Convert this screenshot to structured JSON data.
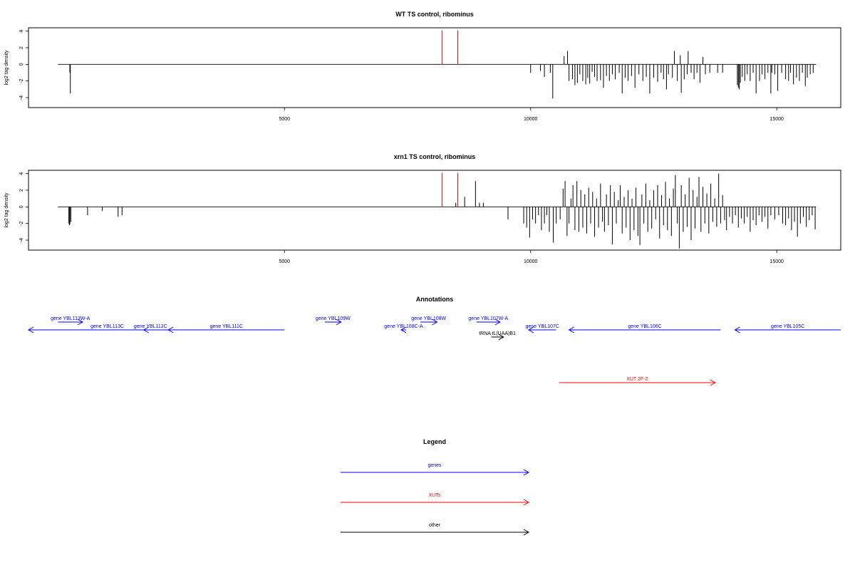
{
  "chart_data": [
    {
      "type": "bar",
      "title": "WT TS control, ribominus",
      "ylabel": "log2 tag density",
      "xlim": [
        -200,
        16300
      ],
      "ylim": [
        -5.2,
        4.4
      ],
      "xticks": [
        5000,
        10000,
        15000
      ],
      "xtick_labels": [
        "5000",
        "10000",
        "15000"
      ],
      "yticks": [
        -4,
        -2,
        0,
        2,
        4
      ],
      "ytick_labels": [
        "-4",
        "-2",
        "0",
        "2",
        "4"
      ],
      "baseline": [
        400,
        15800
      ],
      "marker_color": "#ff0000",
      "markers": [
        {
          "x": 8200,
          "y": 4.1
        },
        {
          "x": 8520,
          "y": 4.1
        }
      ],
      "values": [
        [
          640,
          -1.0
        ],
        [
          650,
          -3.5
        ],
        [
          10000,
          -1.0
        ],
        [
          10200,
          -0.8
        ],
        [
          10280,
          -1.5
        ],
        [
          10400,
          -1.0
        ],
        [
          10450,
          -4.1
        ],
        [
          10680,
          1.0
        ],
        [
          10750,
          1.6
        ],
        [
          10780,
          -2.0
        ],
        [
          10850,
          -1.8
        ],
        [
          10900,
          -2.5
        ],
        [
          10950,
          -2.2
        ],
        [
          11000,
          -1.2
        ],
        [
          11060,
          -2.0
        ],
        [
          11120,
          -2.4
        ],
        [
          11160,
          -1.6
        ],
        [
          11200,
          -2.3
        ],
        [
          11250,
          -0.9
        ],
        [
          11300,
          -1.5
        ],
        [
          11350,
          -2.0
        ],
        [
          11420,
          -1.9
        ],
        [
          11480,
          -2.8
        ],
        [
          11540,
          -1.4
        ],
        [
          11600,
          -2.0
        ],
        [
          11660,
          -1.2
        ],
        [
          11720,
          -1.8
        ],
        [
          11800,
          -1.0
        ],
        [
          11860,
          -3.5
        ],
        [
          11920,
          -1.6
        ],
        [
          11980,
          -2.0
        ],
        [
          12050,
          -1.4
        ],
        [
          12120,
          -2.8
        ],
        [
          12200,
          -1.2
        ],
        [
          12280,
          -2.0
        ],
        [
          12350,
          -1.5
        ],
        [
          12420,
          -3.5
        ],
        [
          12500,
          -1.6
        ],
        [
          12580,
          -2.1
        ],
        [
          12650,
          -1.0
        ],
        [
          12700,
          -1.8
        ],
        [
          12760,
          -3.0
        ],
        [
          12800,
          -1.2
        ],
        [
          12880,
          -1.6
        ],
        [
          12920,
          1.6
        ],
        [
          12980,
          -2.0
        ],
        [
          13040,
          1.1
        ],
        [
          13060,
          -3.4
        ],
        [
          13120,
          -1.8
        ],
        [
          13180,
          -1.2
        ],
        [
          13200,
          1.6
        ],
        [
          13260,
          -1.0
        ],
        [
          13320,
          -1.8
        ],
        [
          13380,
          -1.0
        ],
        [
          13440,
          -2.2
        ],
        [
          13500,
          0.9
        ],
        [
          13550,
          -1.2
        ],
        [
          13640,
          -1.0
        ],
        [
          13800,
          -1.0
        ],
        [
          13900,
          -1.0
        ],
        [
          14200,
          -2.5
        ],
        [
          14220,
          -2.8
        ],
        [
          14240,
          -3.0
        ],
        [
          14260,
          -2.2
        ],
        [
          14300,
          -1.5
        ],
        [
          14350,
          -2.0
        ],
        [
          14400,
          -1.2
        ],
        [
          14460,
          -2.0
        ],
        [
          14520,
          -1.0
        ],
        [
          14580,
          -3.5
        ],
        [
          14650,
          -2.0
        ],
        [
          14700,
          -1.2
        ],
        [
          14760,
          -1.8
        ],
        [
          14820,
          -1.0
        ],
        [
          14880,
          -3.5
        ],
        [
          14900,
          -1.0
        ],
        [
          14960,
          -1.2
        ],
        [
          15020,
          -3.2
        ],
        [
          15100,
          -1.0
        ],
        [
          15180,
          -1.8
        ],
        [
          15240,
          -2.0
        ],
        [
          15280,
          -1.0
        ],
        [
          15340,
          -2.4
        ],
        [
          15400,
          -1.6
        ],
        [
          15460,
          -2.0
        ],
        [
          15520,
          -1.0
        ],
        [
          15580,
          -2.6
        ],
        [
          15620,
          -1.6
        ],
        [
          15680,
          -1.2
        ],
        [
          15740,
          -1.0
        ]
      ]
    },
    {
      "type": "bar",
      "title": "xrn1 TS control, ribominus",
      "ylabel": "log2 tag density",
      "xlim": [
        -200,
        16300
      ],
      "ylim": [
        -5.2,
        4.4
      ],
      "xticks": [
        5000,
        10000,
        15000
      ],
      "xtick_labels": [
        "5000",
        "10000",
        "15000"
      ],
      "yticks": [
        -4,
        -2,
        0,
        2,
        4
      ],
      "ytick_labels": [
        "-4",
        "-2",
        "0",
        "2",
        "4"
      ],
      "baseline": [
        400,
        15800
      ],
      "marker_color": "#ff0000",
      "markers": [
        {
          "x": 8200,
          "y": 4.1
        },
        {
          "x": 8520,
          "y": 4.1
        }
      ],
      "values": [
        [
          620,
          -2.0
        ],
        [
          630,
          -2.2
        ],
        [
          640,
          -2.1
        ],
        [
          660,
          -1.8
        ],
        [
          1000,
          -1.0
        ],
        [
          1300,
          -0.5
        ],
        [
          1620,
          -1.2
        ],
        [
          1700,
          -1.0
        ],
        [
          8480,
          0.5
        ],
        [
          8660,
          1.2
        ],
        [
          8880,
          3.1
        ],
        [
          8960,
          0.5
        ],
        [
          9040,
          0.5
        ],
        [
          9540,
          -1.5
        ],
        [
          9860,
          -2.0
        ],
        [
          9920,
          -2.5
        ],
        [
          9980,
          -3.7
        ],
        [
          10040,
          -1.5
        ],
        [
          10100,
          -2.0
        ],
        [
          10160,
          -1.0
        ],
        [
          10220,
          -2.8
        ],
        [
          10280,
          -2.0
        ],
        [
          10330,
          -1.0
        ],
        [
          10380,
          -3.0
        ],
        [
          10460,
          -4.3
        ],
        [
          10520,
          -2.0
        ],
        [
          10600,
          -1.5
        ],
        [
          10660,
          2.2
        ],
        [
          10700,
          3.1
        ],
        [
          10740,
          -3.5
        ],
        [
          10780,
          -2.0
        ],
        [
          10820,
          1.0
        ],
        [
          10860,
          2.6
        ],
        [
          10900,
          -2.8
        ],
        [
          10940,
          3.1
        ],
        [
          10980,
          -3.0
        ],
        [
          11020,
          2.0
        ],
        [
          11060,
          -2.5
        ],
        [
          11100,
          1.5
        ],
        [
          11140,
          -3.2
        ],
        [
          11180,
          2.3
        ],
        [
          11220,
          -2.0
        ],
        [
          11260,
          1.8
        ],
        [
          11300,
          -3.6
        ],
        [
          11340,
          1.0
        ],
        [
          11380,
          -2.5
        ],
        [
          11420,
          2.8
        ],
        [
          11460,
          -1.8
        ],
        [
          11500,
          -3.0
        ],
        [
          11540,
          1.5
        ],
        [
          11580,
          -2.2
        ],
        [
          11620,
          2.6
        ],
        [
          11660,
          -4.5
        ],
        [
          11700,
          1.8
        ],
        [
          11740,
          -2.0
        ],
        [
          11780,
          0.8
        ],
        [
          11820,
          2.6
        ],
        [
          11860,
          -3.2
        ],
        [
          11900,
          1.2
        ],
        [
          11940,
          -2.5
        ],
        [
          11980,
          2.0
        ],
        [
          12020,
          -4.0
        ],
        [
          12060,
          1.0
        ],
        [
          12100,
          -2.8
        ],
        [
          12140,
          2.3
        ],
        [
          12180,
          -3.5
        ],
        [
          12220,
          -4.6
        ],
        [
          12260,
          1.5
        ],
        [
          12300,
          -2.0
        ],
        [
          12340,
          2.8
        ],
        [
          12380,
          -3.0
        ],
        [
          12420,
          0.8
        ],
        [
          12460,
          -2.6
        ],
        [
          12500,
          2.0
        ],
        [
          12540,
          -1.5
        ],
        [
          12580,
          2.6
        ],
        [
          12620,
          -3.8
        ],
        [
          12660,
          1.4
        ],
        [
          12700,
          -2.2
        ],
        [
          12740,
          3.0
        ],
        [
          12780,
          -2.8
        ],
        [
          12820,
          1.0
        ],
        [
          12860,
          -3.5
        ],
        [
          12900,
          2.2
        ],
        [
          12940,
          3.8
        ],
        [
          12980,
          -2.0
        ],
        [
          13020,
          -5.0
        ],
        [
          13060,
          2.6
        ],
        [
          13100,
          -3.0
        ],
        [
          13140,
          1.5
        ],
        [
          13180,
          -2.4
        ],
        [
          13220,
          3.5
        ],
        [
          13260,
          -4.0
        ],
        [
          13300,
          2.0
        ],
        [
          13340,
          -2.6
        ],
        [
          13380,
          1.2
        ],
        [
          13420,
          3.6
        ],
        [
          13460,
          -3.0
        ],
        [
          13500,
          2.4
        ],
        [
          13540,
          -2.0
        ],
        [
          13580,
          1.6
        ],
        [
          13620,
          -3.2
        ],
        [
          13660,
          2.8
        ],
        [
          13700,
          -1.8
        ],
        [
          13740,
          1.0
        ],
        [
          13780,
          -2.4
        ],
        [
          13820,
          4.0
        ],
        [
          13860,
          -2.0
        ],
        [
          13900,
          1.4
        ],
        [
          13940,
          -1.6
        ],
        [
          13980,
          -2.8
        ],
        [
          14040,
          -1.2
        ],
        [
          14100,
          -2.0
        ],
        [
          14160,
          -1.0
        ],
        [
          14220,
          -2.5
        ],
        [
          14280,
          -1.4
        ],
        [
          14340,
          -2.0
        ],
        [
          14400,
          -1.2
        ],
        [
          14460,
          -3.0
        ],
        [
          14520,
          -1.6
        ],
        [
          14580,
          -2.2
        ],
        [
          14640,
          -1.0
        ],
        [
          14700,
          -1.8
        ],
        [
          14760,
          -1.2
        ],
        [
          14820,
          -2.6
        ],
        [
          14880,
          -1.0
        ],
        [
          14960,
          -1.5
        ],
        [
          15040,
          -1.0
        ],
        [
          15120,
          -2.0
        ],
        [
          15180,
          -2.2
        ],
        [
          15240,
          -1.4
        ],
        [
          15300,
          -2.8
        ],
        [
          15360,
          -1.8
        ],
        [
          15420,
          -3.6
        ],
        [
          15480,
          -2.0
        ],
        [
          15540,
          -1.2
        ],
        [
          15600,
          -2.4
        ],
        [
          15660,
          -1.6
        ],
        [
          15720,
          -1.0
        ],
        [
          15780,
          -2.7
        ]
      ]
    }
  ],
  "annotations": {
    "title": "Annotations",
    "xlim": [
      -200,
      16300
    ],
    "tracks": [
      {
        "label": "gene YBL113W-A",
        "color": "#0000ff",
        "start": 400,
        "end": 900,
        "row": 1
      },
      {
        "label": "gene YBL113C",
        "color": "#0000ff",
        "start": 3000,
        "end": -200,
        "row": 0
      },
      {
        "label": "gene YBL112C",
        "color": "#0000ff",
        "start": 2420,
        "end": 2140,
        "row": 0
      },
      {
        "label": "gene YBL111C",
        "color": "#0000ff",
        "start": 5000,
        "end": 2640,
        "row": 0
      },
      {
        "label": "gene YBL109W",
        "color": "#0000ff",
        "start": 5820,
        "end": 6150,
        "row": 1
      },
      {
        "label": "gene YBL108C-A",
        "color": "#0000ff",
        "start": 7470,
        "end": 7370,
        "row": 0
      },
      {
        "label": "gene YBL108W",
        "color": "#0000ff",
        "start": 7760,
        "end": 8100,
        "row": 1
      },
      {
        "label": "gene YBL107W-A",
        "color": "#0000ff",
        "start": 8900,
        "end": 9380,
        "row": 1
      },
      {
        "label": "gene YBL107C",
        "color": "#0000ff",
        "start": 10520,
        "end": 9960,
        "row": 0
      },
      {
        "label": "tRNA tL(UAA)B1",
        "color": "#000000",
        "start": 9200,
        "end": 9450,
        "row": 2
      },
      {
        "label": "gene YBL106C",
        "color": "#0000ff",
        "start": 13860,
        "end": 10780,
        "row": 0
      },
      {
        "label": "gene YBL105C",
        "color": "#0000ff",
        "start": 16300,
        "end": 14150,
        "row": 0
      },
      {
        "label": "XUT 2F-2",
        "color": "#ff0000",
        "start": 10580,
        "end": 13750,
        "row": 3
      }
    ]
  },
  "legend": {
    "title": "Legend",
    "items": [
      {
        "label": "genes",
        "color": "#0000ff"
      },
      {
        "label": "XUTs",
        "color": "#ff0000"
      },
      {
        "label": "other",
        "color": "#000000"
      }
    ]
  }
}
